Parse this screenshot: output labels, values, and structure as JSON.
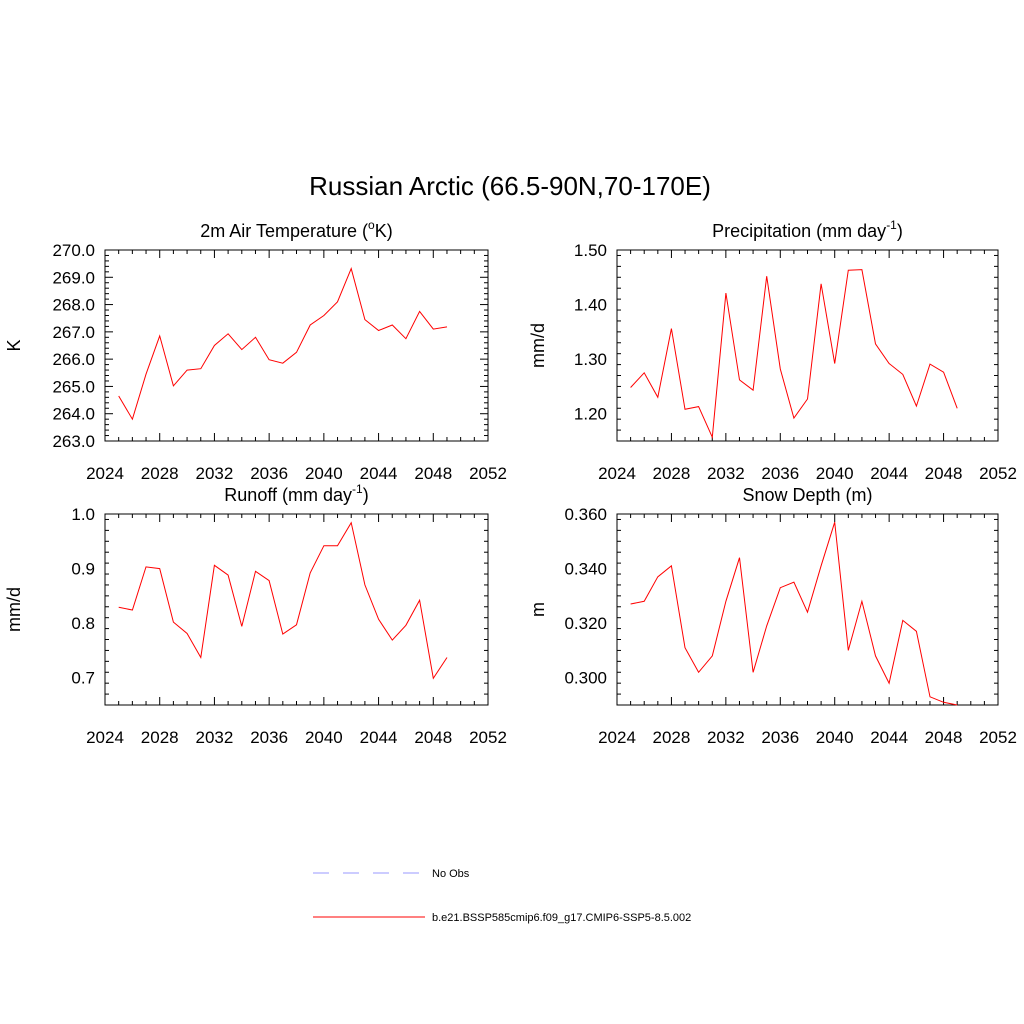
{
  "figure": {
    "title": "Russian Arctic (66.5-90N,70-170E)"
  },
  "legend": {
    "entries": [
      {
        "label": "No Obs",
        "color": "#9999ff",
        "style": "dashed"
      },
      {
        "label": "b.e21.BSSP585cmip6.f09_g17.CMIP6-SSP5-8.5.002",
        "color": "#ff0000",
        "style": "solid"
      }
    ]
  },
  "chart_data": [
    {
      "type": "line",
      "title": "2m Air Temperature (°K)",
      "title_main": "2m Air Temperature (",
      "title_sup": "o",
      "title_end": "K)",
      "ylabel": "K",
      "xlim": [
        2024,
        2052
      ],
      "ylim": [
        263.0,
        270.0
      ],
      "xticks": [
        2024,
        2028,
        2032,
        2036,
        2040,
        2044,
        2048,
        2052
      ],
      "yticks": [
        263.0,
        264.0,
        265.0,
        266.0,
        267.0,
        268.0,
        269.0,
        270.0
      ],
      "ytick_labels": [
        "263.0",
        "264.0",
        "265.0",
        "266.0",
        "267.0",
        "268.0",
        "269.0",
        "270.0"
      ],
      "x": [
        2025,
        2026,
        2027,
        2028,
        2029,
        2030,
        2031,
        2032,
        2033,
        2034,
        2035,
        2036,
        2037,
        2038,
        2039,
        2040,
        2041,
        2042,
        2043,
        2044,
        2045,
        2046,
        2047,
        2048,
        2049
      ],
      "series": [
        {
          "color": "#ff0000",
          "values": [
            264.65,
            263.8,
            265.45,
            266.85,
            265.02,
            265.6,
            265.65,
            266.5,
            266.93,
            266.35,
            266.8,
            265.98,
            265.85,
            266.25,
            267.25,
            267.6,
            268.1,
            269.32,
            267.45,
            267.05,
            267.25,
            266.75,
            267.75,
            267.1,
            267.18
          ]
        }
      ]
    },
    {
      "type": "line",
      "title": "Precipitation (mm day-1)",
      "title_main": "Precipitation (mm day",
      "title_sup": "-1",
      "title_end": ")",
      "ylabel": "mm/d",
      "xlim": [
        2024,
        2052
      ],
      "ylim": [
        1.15,
        1.5
      ],
      "xticks": [
        2024,
        2028,
        2032,
        2036,
        2040,
        2044,
        2048,
        2052
      ],
      "yticks": [
        1.2,
        1.3,
        1.4,
        1.5
      ],
      "ytick_labels": [
        "1.20",
        "1.30",
        "1.40",
        "1.50"
      ],
      "x": [
        2025,
        2026,
        2027,
        2028,
        2029,
        2030,
        2031,
        2032,
        2033,
        2034,
        2035,
        2036,
        2037,
        2038,
        2039,
        2040,
        2041,
        2042,
        2043,
        2044,
        2045,
        2046,
        2047,
        2048,
        2049
      ],
      "series": [
        {
          "color": "#ff0000",
          "values": [
            1.248,
            1.275,
            1.23,
            1.356,
            1.208,
            1.213,
            1.157,
            1.421,
            1.262,
            1.243,
            1.452,
            1.282,
            1.192,
            1.227,
            1.438,
            1.292,
            1.463,
            1.464,
            1.328,
            1.292,
            1.272,
            1.214,
            1.291,
            1.276,
            1.21
          ]
        }
      ]
    },
    {
      "type": "line",
      "title": "Runoff (mm day-1)",
      "title_main": "Runoff (mm day",
      "title_sup": "-1",
      "title_end": ")",
      "ylabel": "mm/d",
      "xlim": [
        2024,
        2052
      ],
      "ylim": [
        0.65,
        1.0
      ],
      "xticks": [
        2024,
        2028,
        2032,
        2036,
        2040,
        2044,
        2048,
        2052
      ],
      "yticks": [
        0.7,
        0.8,
        0.9,
        1.0
      ],
      "ytick_labels": [
        "0.7",
        "0.8",
        "0.9",
        "1.0"
      ],
      "x": [
        2025,
        2026,
        2027,
        2028,
        2029,
        2030,
        2031,
        2032,
        2033,
        2034,
        2035,
        2036,
        2037,
        2038,
        2039,
        2040,
        2041,
        2042,
        2043,
        2044,
        2045,
        2046,
        2047,
        2048,
        2049
      ],
      "series": [
        {
          "color": "#ff0000",
          "values": [
            0.829,
            0.824,
            0.903,
            0.9,
            0.802,
            0.781,
            0.737,
            0.906,
            0.888,
            0.794,
            0.895,
            0.878,
            0.78,
            0.797,
            0.892,
            0.942,
            0.942,
            0.984,
            0.87,
            0.807,
            0.769,
            0.796,
            0.842,
            0.699,
            0.737
          ]
        }
      ]
    },
    {
      "type": "line",
      "title": "Snow Depth (m)",
      "title_main": "Snow Depth (m)",
      "title_sup": "",
      "title_end": "",
      "ylabel": "m",
      "xlim": [
        2024,
        2052
      ],
      "ylim": [
        0.29,
        0.36
      ],
      "xticks": [
        2024,
        2028,
        2032,
        2036,
        2040,
        2044,
        2048,
        2052
      ],
      "yticks": [
        0.3,
        0.32,
        0.34,
        0.36
      ],
      "ytick_labels": [
        "0.300",
        "0.320",
        "0.340",
        "0.360"
      ],
      "x": [
        2025,
        2026,
        2027,
        2028,
        2029,
        2030,
        2031,
        2032,
        2033,
        2034,
        2035,
        2036,
        2037,
        2038,
        2039,
        2040,
        2041,
        2042,
        2043,
        2044,
        2045,
        2046,
        2047,
        2048,
        2049
      ],
      "series": [
        {
          "color": "#ff0000",
          "values": [
            0.327,
            0.328,
            0.337,
            0.341,
            0.311,
            0.302,
            0.308,
            0.328,
            0.344,
            0.302,
            0.319,
            0.333,
            0.335,
            0.324,
            0.341,
            0.357,
            0.31,
            0.328,
            0.308,
            0.298,
            0.321,
            0.317,
            0.293,
            0.291,
            0.29
          ]
        }
      ]
    }
  ]
}
